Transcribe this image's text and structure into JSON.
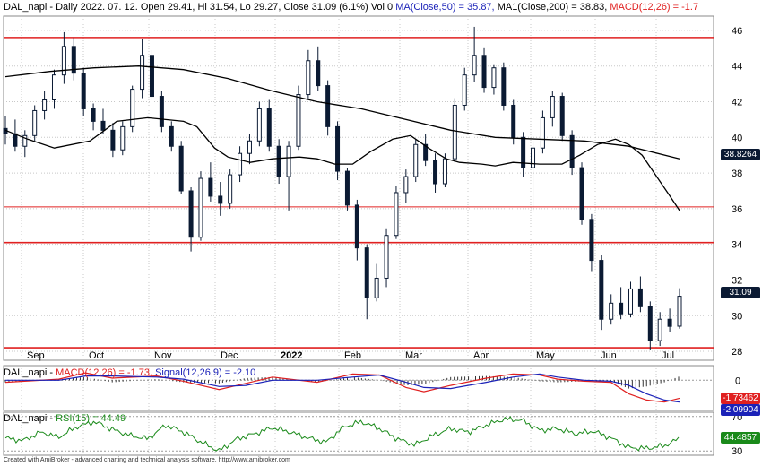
{
  "header": {
    "main_title": "DAL_napi - Daily 2022. 07. 12. Open 29.41, Hi 31.54, Lo 29.27, Close 31.09 (6.1%) Vol 0",
    "ma50": "MA(Close,50) = 35.87,",
    "ma200": "MA1(Close,200) = 38.83,",
    "macd_main": "MACD(12,26) = -1.7",
    "macd_panel_prefix": "DAL_napi -",
    "macd_label": "MACD(12,26) = -1.73,",
    "signal_label": "Signal(12,26,9) = -2.10",
    "rsi_prefix": "DAL_napi -",
    "rsi_label": "RSI(15) = 44.49"
  },
  "footer": "Created with AmiBroker - advanced charting and technical analysis software. http://www.amibroker.com",
  "value_tags": {
    "ma200": "38.8264",
    "close": "31.09",
    "macd": "-1.73462",
    "signal": "-2.09904",
    "rsi": "44.4857"
  },
  "colors": {
    "candles": "#0b1a33",
    "ma": "#000000",
    "hline": "#e02020",
    "macd": "#1b22b8",
    "signal": "#e02020",
    "rsi": "#1a8a1a",
    "grid": "#c8c8c8",
    "tag_bg": "#0b1a33"
  },
  "chart_data": [
    {
      "type": "candlestick",
      "title": "DAL_napi - Daily",
      "x_ticks": [
        "Sep",
        "Oct",
        "Nov",
        "Dec",
        "2022",
        "Feb",
        "Mar",
        "Apr",
        "May",
        "Jun",
        "Jul"
      ],
      "ylim": [
        27.5,
        46.8
      ],
      "y_ticks": [
        28,
        30,
        32,
        34,
        36,
        38,
        40,
        42,
        44,
        46
      ],
      "grid": true,
      "horizontal_lines": [
        45.6,
        36.1,
        34.1,
        28.2
      ],
      "series": [
        {
          "name": "MA(Close,50)",
          "points": [
            [
              0,
              40.4
            ],
            [
              25,
              39.9
            ],
            [
              55,
              39.4
            ],
            [
              95,
              39.8
            ],
            [
              125,
              40.9
            ],
            [
              160,
              41.1
            ],
            [
              200,
              40.9
            ],
            [
              215,
              40.6
            ],
            [
              235,
              39.4
            ],
            [
              250,
              38.9
            ],
            [
              275,
              38.6
            ],
            [
              300,
              38.8
            ],
            [
              330,
              38.9
            ],
            [
              350,
              38.8
            ],
            [
              370,
              38.5
            ],
            [
              390,
              38.5
            ],
            [
              410,
              39.2
            ],
            [
              435,
              39.9
            ],
            [
              455,
              40.1
            ],
            [
              475,
              39.4
            ],
            [
              495,
              38.8
            ],
            [
              510,
              38.6
            ],
            [
              535,
              38.5
            ],
            [
              550,
              38.4
            ],
            [
              570,
              38.6
            ],
            [
              600,
              38.5
            ],
            [
              625,
              38.5
            ],
            [
              645,
              39.0
            ],
            [
              665,
              39.6
            ],
            [
              685,
              39.9
            ],
            [
              700,
              39.6
            ],
            [
              715,
              39.0
            ],
            [
              730,
              37.9
            ],
            [
              745,
              36.8
            ],
            [
              757,
              35.9
            ]
          ]
        },
        {
          "name": "MA1(Close,200)",
          "points": [
            [
              0,
              43.4
            ],
            [
              50,
              43.7
            ],
            [
              100,
              43.9
            ],
            [
              150,
              44.0
            ],
            [
              200,
              43.8
            ],
            [
              250,
              43.3
            ],
            [
              300,
              42.6
            ],
            [
              350,
              42.0
            ],
            [
              400,
              41.6
            ],
            [
              450,
              41.0
            ],
            [
              500,
              40.4
            ],
            [
              550,
              40.0
            ],
            [
              600,
              39.9
            ],
            [
              650,
              39.8
            ],
            [
              700,
              39.5
            ],
            [
              757,
              38.8
            ]
          ]
        }
      ],
      "candles_ohlc_sampled": [
        [
          40.5,
          41.2,
          39.6,
          40.2
        ],
        [
          40.2,
          41.0,
          39.2,
          39.5
        ],
        [
          39.5,
          40.4,
          38.9,
          40.1
        ],
        [
          40.1,
          41.8,
          39.8,
          41.5
        ],
        [
          41.5,
          42.6,
          41.0,
          42.1
        ],
        [
          42.1,
          43.8,
          41.6,
          43.5
        ],
        [
          43.5,
          45.9,
          43.0,
          45.1
        ],
        [
          45.1,
          45.6,
          43.2,
          43.6
        ],
        [
          43.6,
          43.9,
          41.2,
          41.6
        ],
        [
          41.6,
          41.9,
          40.4,
          40.9
        ],
        [
          40.9,
          41.6,
          40.2,
          40.4
        ],
        [
          40.4,
          40.8,
          38.9,
          39.3
        ],
        [
          39.3,
          40.9,
          39.0,
          40.6
        ],
        [
          40.6,
          42.9,
          40.3,
          42.7
        ],
        [
          42.7,
          45.5,
          42.2,
          44.6
        ],
        [
          44.6,
          44.9,
          42.1,
          42.3
        ],
        [
          42.3,
          42.6,
          40.3,
          40.6
        ],
        [
          40.6,
          40.9,
          39.2,
          39.5
        ],
        [
          39.5,
          39.8,
          36.8,
          37.0
        ],
        [
          37.0,
          37.2,
          33.6,
          34.4
        ],
        [
          34.4,
          38.1,
          34.2,
          37.7
        ],
        [
          37.7,
          38.6,
          36.4,
          36.7
        ],
        [
          36.7,
          37.5,
          35.6,
          36.3
        ],
        [
          36.3,
          38.2,
          36.0,
          37.9
        ],
        [
          37.9,
          39.5,
          37.5,
          39.1
        ],
        [
          39.1,
          40.2,
          38.5,
          39.8
        ],
        [
          39.8,
          42.0,
          39.5,
          41.6
        ],
        [
          41.6,
          42.1,
          39.2,
          39.5
        ],
        [
          39.5,
          39.9,
          37.4,
          37.8
        ],
        [
          37.8,
          39.8,
          35.9,
          39.5
        ],
        [
          39.5,
          42.9,
          39.3,
          42.4
        ],
        [
          42.4,
          44.9,
          42.1,
          44.3
        ],
        [
          44.3,
          45.1,
          42.6,
          42.9
        ],
        [
          42.9,
          43.2,
          40.1,
          40.6
        ],
        [
          40.6,
          40.9,
          37.6,
          38.1
        ],
        [
          38.1,
          38.3,
          35.9,
          36.2
        ],
        [
          36.2,
          36.5,
          33.1,
          33.8
        ],
        [
          33.8,
          34.0,
          29.8,
          31.0
        ],
        [
          31.0,
          32.9,
          30.8,
          32.1
        ],
        [
          32.1,
          34.9,
          31.6,
          34.5
        ],
        [
          34.5,
          37.3,
          34.3,
          36.9
        ],
        [
          36.9,
          38.2,
          36.3,
          37.8
        ],
        [
          37.8,
          39.9,
          37.5,
          39.6
        ],
        [
          39.6,
          40.2,
          38.4,
          38.7
        ],
        [
          38.7,
          39.1,
          36.9,
          37.4
        ],
        [
          37.4,
          39.1,
          37.2,
          38.8
        ],
        [
          38.8,
          42.2,
          38.6,
          41.8
        ],
        [
          41.8,
          43.9,
          41.5,
          43.5
        ],
        [
          43.5,
          46.2,
          43.1,
          44.6
        ],
        [
          44.6,
          45.0,
          42.5,
          42.8
        ],
        [
          42.8,
          44.1,
          42.4,
          43.9
        ],
        [
          43.9,
          44.2,
          41.5,
          41.8
        ],
        [
          41.8,
          42.1,
          39.6,
          40.0
        ],
        [
          40.0,
          40.3,
          37.8,
          38.3
        ],
        [
          38.3,
          39.8,
          35.8,
          39.4
        ],
        [
          39.4,
          41.5,
          39.1,
          41.1
        ],
        [
          41.1,
          42.6,
          40.6,
          42.3
        ],
        [
          42.3,
          42.5,
          39.8,
          40.1
        ],
        [
          40.1,
          40.4,
          37.9,
          38.3
        ],
        [
          38.3,
          38.6,
          35.1,
          35.4
        ],
        [
          35.4,
          35.7,
          32.5,
          33.1
        ],
        [
          33.1,
          33.4,
          29.2,
          29.8
        ],
        [
          29.8,
          31.2,
          29.5,
          30.7
        ],
        [
          30.7,
          31.6,
          29.8,
          30.1
        ],
        [
          30.1,
          31.9,
          29.9,
          31.5
        ],
        [
          31.5,
          32.2,
          30.2,
          30.5
        ],
        [
          30.5,
          30.8,
          28.1,
          28.6
        ],
        [
          28.6,
          30.2,
          28.3,
          29.8
        ],
        [
          29.8,
          30.4,
          29.1,
          29.4
        ],
        [
          29.41,
          31.54,
          29.27,
          31.09
        ]
      ]
    },
    {
      "type": "line",
      "title": "MACD(12,26) / Signal(12,26,9)",
      "ylim": [
        -2.9,
        1.4
      ],
      "y_ticks": [
        0
      ],
      "series": [
        {
          "name": "MACD(12,26)",
          "points": [
            [
              0,
              -0.2
            ],
            [
              60,
              0.1
            ],
            [
              90,
              0.7
            ],
            [
              120,
              0.2
            ],
            [
              170,
              0.4
            ],
            [
              200,
              -0.1
            ],
            [
              240,
              -0.9
            ],
            [
              270,
              -0.3
            ],
            [
              300,
              0.3
            ],
            [
              350,
              -0.2
            ],
            [
              390,
              0.6
            ],
            [
              420,
              0.5
            ],
            [
              450,
              -0.7
            ],
            [
              470,
              -1.1
            ],
            [
              500,
              -0.5
            ],
            [
              540,
              0.2
            ],
            [
              570,
              0.6
            ],
            [
              600,
              0.5
            ],
            [
              620,
              0.1
            ],
            [
              650,
              -0.1
            ],
            [
              680,
              -0.2
            ],
            [
              700,
              -1.3
            ],
            [
              720,
              -1.9
            ],
            [
              740,
              -2.1
            ],
            [
              757,
              -1.73
            ]
          ]
        },
        {
          "name": "Signal(12,26,9)",
          "points": [
            [
              0,
              0.0
            ],
            [
              60,
              0.0
            ],
            [
              90,
              0.4
            ],
            [
              120,
              0.4
            ],
            [
              170,
              0.3
            ],
            [
              200,
              0.1
            ],
            [
              240,
              -0.6
            ],
            [
              270,
              -0.5
            ],
            [
              300,
              0.0
            ],
            [
              350,
              0.0
            ],
            [
              390,
              0.3
            ],
            [
              420,
              0.5
            ],
            [
              450,
              -0.2
            ],
            [
              470,
              -0.7
            ],
            [
              500,
              -0.8
            ],
            [
              540,
              -0.2
            ],
            [
              570,
              0.3
            ],
            [
              600,
              0.6
            ],
            [
              620,
              0.3
            ],
            [
              650,
              0.0
            ],
            [
              680,
              -0.1
            ],
            [
              700,
              -0.5
            ],
            [
              720,
              -1.3
            ],
            [
              740,
              -1.9
            ],
            [
              757,
              -2.1
            ]
          ]
        }
      ]
    },
    {
      "type": "line",
      "title": "RSI(15)",
      "ylim": [
        25,
        75
      ],
      "y_ticks": [
        30,
        70
      ],
      "series": [
        {
          "name": "RSI(15)",
          "points": [
            [
              0,
              45
            ],
            [
              20,
              42
            ],
            [
              40,
              52
            ],
            [
              60,
              46
            ],
            [
              80,
              58
            ],
            [
              100,
              64
            ],
            [
              120,
              55
            ],
            [
              140,
              48
            ],
            [
              160,
              44
            ],
            [
              180,
              60
            ],
            [
              200,
              52
            ],
            [
              220,
              40
            ],
            [
              240,
              30
            ],
            [
              260,
              44
            ],
            [
              280,
              50
            ],
            [
              300,
              57
            ],
            [
              320,
              52
            ],
            [
              340,
              45
            ],
            [
              360,
              40
            ],
            [
              380,
              58
            ],
            [
              400,
              64
            ],
            [
              420,
              56
            ],
            [
              440,
              44
            ],
            [
              460,
              37
            ],
            [
              480,
              48
            ],
            [
              500,
              56
            ],
            [
              520,
              52
            ],
            [
              540,
              60
            ],
            [
              560,
              67
            ],
            [
              580,
              66
            ],
            [
              600,
              54
            ],
            [
              620,
              56
            ],
            [
              640,
              50
            ],
            [
              660,
              53
            ],
            [
              680,
              45
            ],
            [
              700,
              34
            ],
            [
              720,
              33
            ],
            [
              740,
              36
            ],
            [
              757,
              44.49
            ]
          ]
        }
      ]
    }
  ]
}
